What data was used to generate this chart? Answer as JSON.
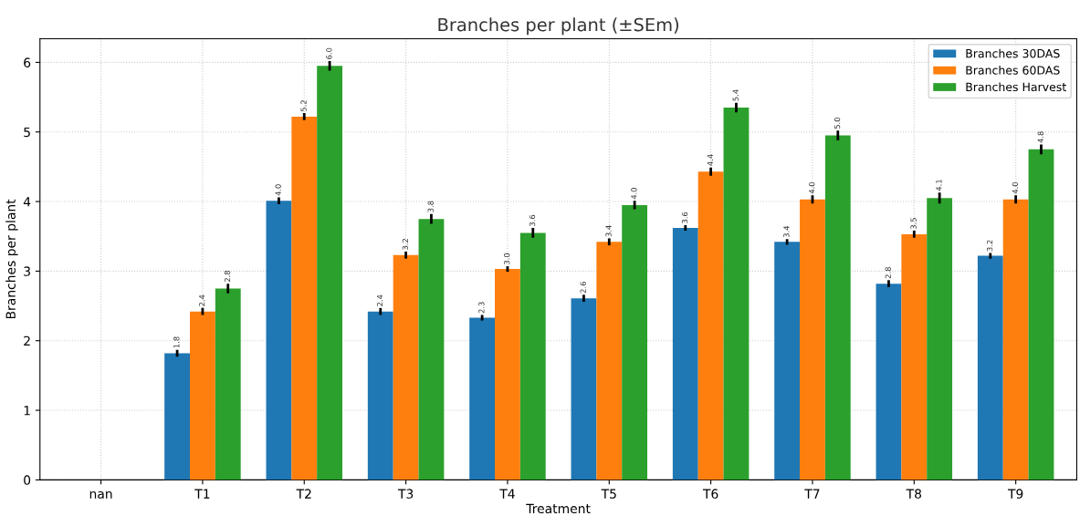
{
  "chart_data": {
    "type": "bar",
    "title": "Branches per plant (±SEm)",
    "xlabel": "Treatment",
    "ylabel": "Branches per plant",
    "categories": [
      "nan",
      "T1",
      "T2",
      "T3",
      "T4",
      "T5",
      "T6",
      "T7",
      "T8",
      "T9"
    ],
    "series": [
      {
        "name": "Branches 30DAS",
        "color": "#1f77b4",
        "values": [
          null,
          1.82,
          4.01,
          2.42,
          2.33,
          2.61,
          3.62,
          3.42,
          2.82,
          3.22
        ],
        "errors": [
          null,
          0.05,
          0.05,
          0.05,
          0.04,
          0.05,
          0.04,
          0.04,
          0.05,
          0.04
        ],
        "value_labels": [
          null,
          "1.8",
          "4.0",
          "2.4",
          "2.3",
          "2.6",
          "3.6",
          "3.4",
          "2.8",
          "3.2"
        ]
      },
      {
        "name": "Branches 60DAS",
        "color": "#ff7f0e",
        "values": [
          null,
          2.42,
          5.22,
          3.23,
          3.03,
          3.42,
          4.43,
          4.03,
          3.53,
          4.03
        ],
        "errors": [
          null,
          0.05,
          0.05,
          0.05,
          0.04,
          0.05,
          0.06,
          0.06,
          0.05,
          0.06
        ],
        "value_labels": [
          null,
          "2.4",
          "5.2",
          "3.2",
          "3.0",
          "3.4",
          "4.4",
          "4.0",
          "3.5",
          "4.0"
        ]
      },
      {
        "name": "Branches Harvest",
        "color": "#2ca02c",
        "values": [
          null,
          2.75,
          5.95,
          3.75,
          3.55,
          3.95,
          5.35,
          4.95,
          4.05,
          4.75
        ],
        "errors": [
          null,
          0.07,
          0.07,
          0.07,
          0.07,
          0.06,
          0.07,
          0.07,
          0.08,
          0.07
        ],
        "value_labels": [
          null,
          "2.8",
          "6.0",
          "3.8",
          "3.6",
          "4.0",
          "5.4",
          "5.0",
          "4.1",
          "4.8"
        ]
      }
    ],
    "ylim": [
      0,
      6.34
    ],
    "yticks": [
      0,
      1,
      2,
      3,
      4,
      5,
      6
    ],
    "grid": true,
    "legend": "top right"
  }
}
